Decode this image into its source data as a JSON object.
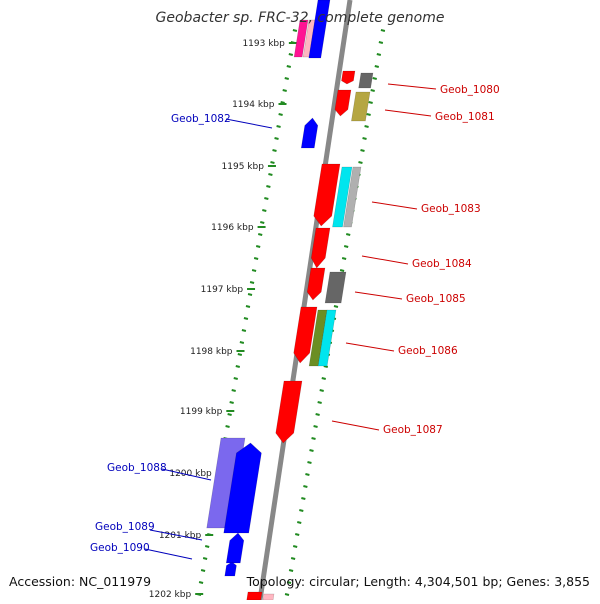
{
  "title": "Geobacter sp. FRC-32, complete genome",
  "footer": {
    "accession": "Accession: NC_011979",
    "summary": "Topology: circular; Length: 4,304,501 bp; Genes: 3,855"
  },
  "ticks": [
    "1193 kbp",
    "1194 kbp",
    "1195 kbp",
    "1196 kbp",
    "1197 kbp",
    "1198 kbp",
    "1199 kbp",
    "1200 kbp",
    "1201 kbp",
    "1202 kbp"
  ],
  "gene_labels": [
    {
      "name": "Geob_1080",
      "strand": "forward"
    },
    {
      "name": "Geob_1081",
      "strand": "forward"
    },
    {
      "name": "Geob_1082",
      "strand": "reverse"
    },
    {
      "name": "Geob_1083",
      "strand": "forward"
    },
    {
      "name": "Geob_1084",
      "strand": "forward"
    },
    {
      "name": "Geob_1085",
      "strand": "forward"
    },
    {
      "name": "Geob_1086",
      "strand": "forward"
    },
    {
      "name": "Geob_1087",
      "strand": "forward"
    },
    {
      "name": "Geob_1088",
      "strand": "reverse"
    },
    {
      "name": "Geob_1089",
      "strand": "reverse"
    },
    {
      "name": "Geob_1090",
      "strand": "reverse"
    }
  ],
  "colors": {
    "forward_label": "#cc0000",
    "reverse_label": "#0000bb",
    "backbone": "#888888",
    "ticks": "#228b22",
    "gene_forward": "#ff0000",
    "gene_reverse": "#0000ff",
    "cog_magenta": "#ff1493",
    "cog_gray": "#666666",
    "cog_olive": "#b5a642",
    "cog_cyan": "#00e5ee",
    "cog_green": "#6b8e23",
    "cog_purple": "#7b68ee"
  }
}
